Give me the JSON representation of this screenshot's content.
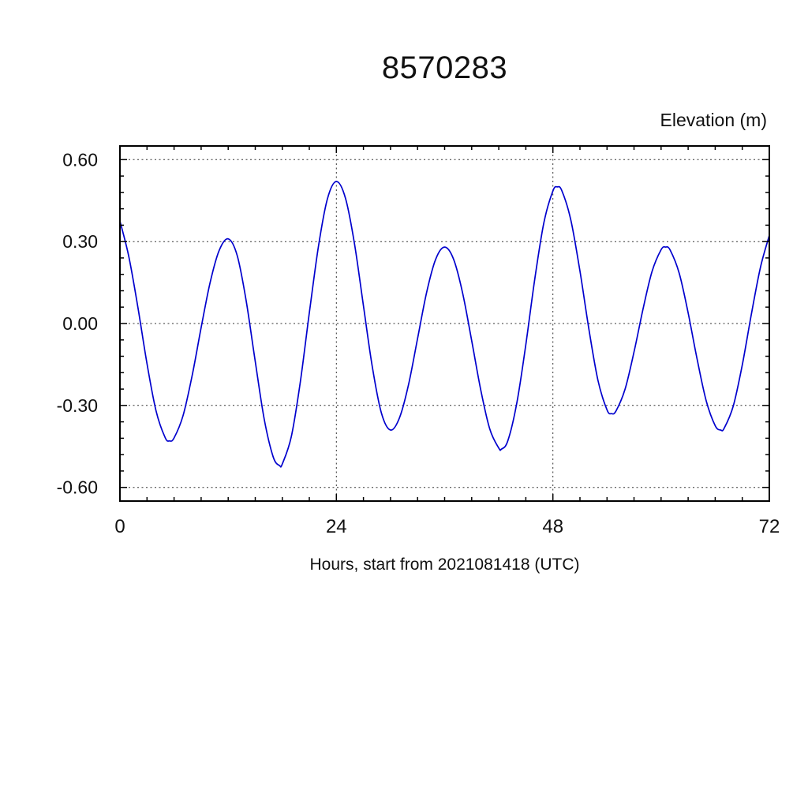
{
  "chart_data": {
    "type": "line",
    "title": "8570283",
    "ylabel": "Elevation (m)",
    "xlabel": "Hours, start from 2021081418 (UTC)",
    "xlim": [
      0,
      72
    ],
    "ylim": [
      -0.65,
      0.65
    ],
    "x_ticks": [
      0,
      24,
      48,
      72
    ],
    "x_tick_labels": [
      "0",
      "24",
      "48",
      "72"
    ],
    "x_minor_step": 3,
    "y_ticks": [
      -0.6,
      -0.3,
      0,
      0.3,
      0.6
    ],
    "y_tick_labels": [
      "-0.60",
      "-0.30",
      "0.00",
      "0.30",
      "0.60"
    ],
    "y_minor_step": 0.06,
    "grid": {
      "h_lines": [
        -0.6,
        -0.3,
        0,
        0.3,
        0.6
      ],
      "v_lines": [
        24,
        48
      ],
      "style": "dashed"
    },
    "line_color": "#0000cd",
    "series": [
      {
        "name": "tidal-elevation",
        "points": [
          [
            0,
            0.375
          ],
          [
            1,
            0.243
          ],
          [
            2,
            0.057
          ],
          [
            3,
            -0.147
          ],
          [
            4,
            -0.319
          ],
          [
            5,
            -0.417
          ],
          [
            5.5,
            -0.43
          ],
          [
            6,
            -0.419
          ],
          [
            7,
            -0.337
          ],
          [
            8,
            -0.192
          ],
          [
            9,
            -0.015
          ],
          [
            10,
            0.15
          ],
          [
            11,
            0.267
          ],
          [
            12,
            0.31
          ],
          [
            13,
            0.249
          ],
          [
            14,
            0.083
          ],
          [
            15,
            -0.139
          ],
          [
            16,
            -0.351
          ],
          [
            17,
            -0.489
          ],
          [
            17.7,
            -0.52
          ],
          [
            18,
            -0.514
          ],
          [
            19,
            -0.414
          ],
          [
            20,
            -0.214
          ],
          [
            21,
            0.039
          ],
          [
            22,
            0.281
          ],
          [
            23,
            0.456
          ],
          [
            24,
            0.52
          ],
          [
            25,
            0.459
          ],
          [
            26,
            0.293
          ],
          [
            27,
            0.065
          ],
          [
            28,
            -0.163
          ],
          [
            29,
            -0.329
          ],
          [
            30,
            -0.39
          ],
          [
            31,
            -0.345
          ],
          [
            32,
            -0.223
          ],
          [
            33,
            -0.055
          ],
          [
            34,
            0.113
          ],
          [
            35,
            0.235
          ],
          [
            36,
            0.28
          ],
          [
            37,
            0.235
          ],
          [
            38,
            0.11
          ],
          [
            39,
            -0.063
          ],
          [
            40,
            -0.242
          ],
          [
            41,
            -0.386
          ],
          [
            42,
            -0.456
          ],
          [
            42.3,
            -0.46
          ],
          [
            43,
            -0.43
          ],
          [
            44,
            -0.292
          ],
          [
            45,
            -0.077
          ],
          [
            46,
            0.164
          ],
          [
            47,
            0.368
          ],
          [
            48,
            0.485
          ],
          [
            48.5,
            0.5
          ],
          [
            49,
            0.486
          ],
          [
            50,
            0.378
          ],
          [
            51,
            0.192
          ],
          [
            52,
            -0.022
          ],
          [
            53,
            -0.208
          ],
          [
            54,
            -0.316
          ],
          [
            54.5,
            -0.33
          ],
          [
            55,
            -0.32
          ],
          [
            56,
            -0.241
          ],
          [
            57,
            -0.104
          ],
          [
            58,
            0.054
          ],
          [
            59,
            0.191
          ],
          [
            60,
            0.27
          ],
          [
            60.5,
            0.28
          ],
          [
            61,
            0.269
          ],
          [
            62,
            0.185
          ],
          [
            63,
            0.039
          ],
          [
            64,
            -0.132
          ],
          [
            65,
            -0.283
          ],
          [
            66,
            -0.374
          ],
          [
            66.6,
            -0.39
          ],
          [
            67,
            -0.383
          ],
          [
            68,
            -0.302
          ],
          [
            69,
            -0.152
          ],
          [
            70,
            0.032
          ],
          [
            71,
            0.204
          ],
          [
            72,
            0.323
          ]
        ]
      }
    ]
  }
}
